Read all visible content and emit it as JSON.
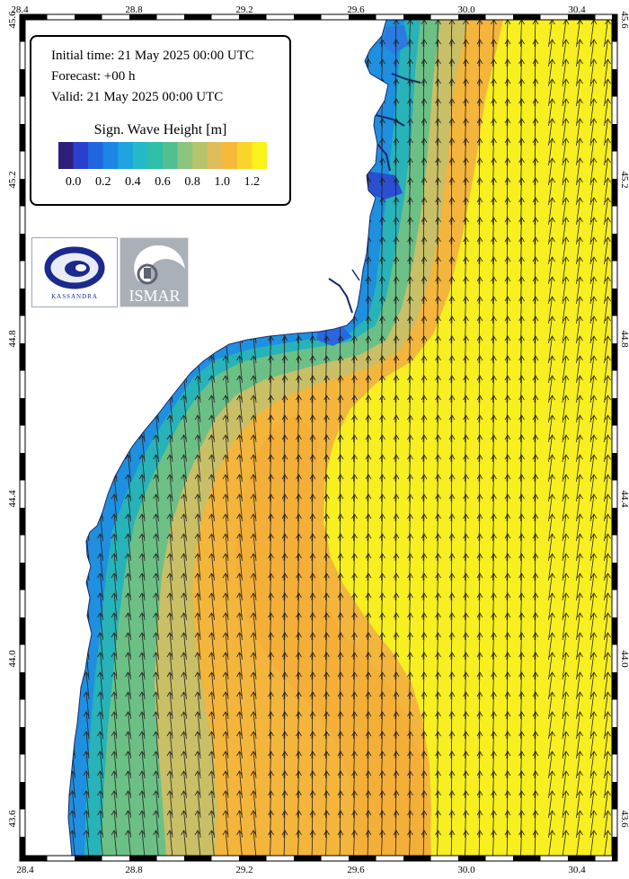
{
  "info": {
    "initial_time": "Initial time: 21 May 2025 00:00 UTC",
    "forecast": "Forecast: +00 h",
    "valid": "Valid: 21 May 2025 00:00 UTC"
  },
  "legend": {
    "title": "Sign. Wave Height [m]",
    "tick_labels": [
      "0.0",
      "0.2",
      "0.4",
      "0.6",
      "0.8",
      "1.0",
      "1.2"
    ],
    "colors": [
      "#2d1e7a",
      "#2b3fcf",
      "#1f66e0",
      "#1c86e6",
      "#1fa3e0",
      "#24b8c8",
      "#2fbfa8",
      "#52bf92",
      "#8cc57e",
      "#b6c46c",
      "#dfbd5b",
      "#f6b93c",
      "#fbd42a",
      "#f9f21b"
    ]
  },
  "logos": {
    "kassandra": "KASSANDRA",
    "ismar": "ISMAR"
  },
  "axes": {
    "lon_ticks": [
      "28.4",
      "28.8",
      "29.2",
      "29.6",
      "30.0",
      "30.4"
    ],
    "lat_ticks": [
      "45.6",
      "45.2",
      "44.8",
      "44.4",
      "44.0",
      "43.6"
    ]
  },
  "map": {
    "land_color": "#ffffff",
    "coast_color": "#1a2a6c",
    "arrow_color": "#222222"
  }
}
